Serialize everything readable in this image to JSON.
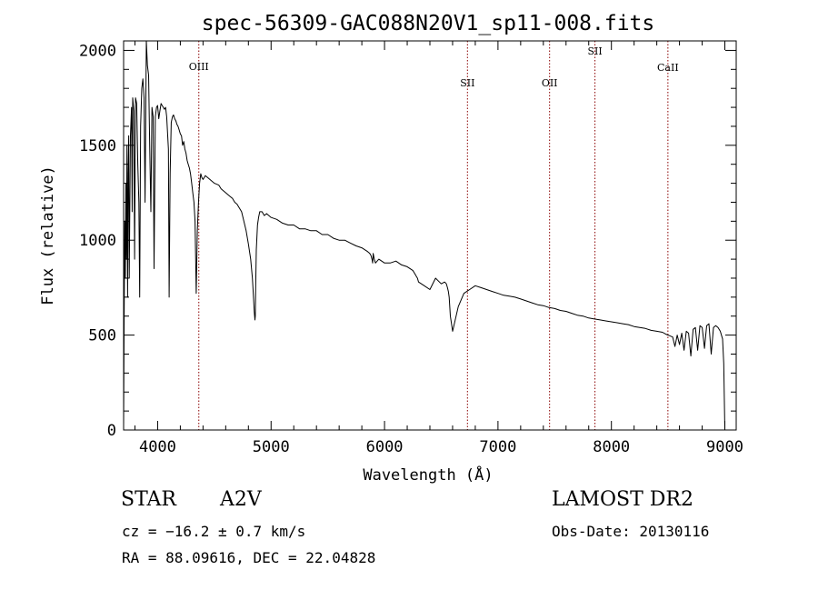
{
  "chart_data": {
    "type": "line",
    "title": "spec-56309-GAC088N20V1_sp11-008.fits",
    "xlabel": "Wavelength (Å)",
    "ylabel": "Flux (relative)",
    "xlim": [
      3700,
      9100
    ],
    "ylim": [
      0,
      2050
    ],
    "xticks": [
      4000,
      5000,
      6000,
      7000,
      8000,
      9000
    ],
    "xtick_labels": [
      "4000",
      "5000",
      "6000",
      "7000",
      "8000",
      "9000"
    ],
    "yticks": [
      0,
      500,
      1000,
      1500,
      2000
    ],
    "ytick_labels": [
      "0",
      "500",
      "1000",
      "1500",
      "2000"
    ],
    "grid": false,
    "series": [
      {
        "x": [
          3700,
          3705,
          3710,
          3715,
          3720,
          3725,
          3730,
          3735,
          3740,
          3745,
          3750,
          3760,
          3770,
          3775,
          3780,
          3790,
          3797,
          3805,
          3815,
          3825,
          3835,
          3842,
          3850,
          3860,
          3870,
          3880,
          3889,
          3900,
          3910,
          3920,
          3930,
          3940,
          3950,
          3960,
          3968,
          3980,
          3990,
          4000,
          4010,
          4020,
          4030,
          4040,
          4050,
          4060,
          4070,
          4080,
          4095,
          4101,
          4110,
          4120,
          4130,
          4140,
          4150,
          4160,
          4170,
          4180,
          4190,
          4200,
          4210,
          4220,
          4230,
          4240,
          4250,
          4260,
          4270,
          4280,
          4290,
          4300,
          4310,
          4320,
          4330,
          4340,
          4350,
          4360,
          4370,
          4380,
          4390,
          4400,
          4420,
          4440,
          4460,
          4480,
          4500,
          4520,
          4540,
          4560,
          4580,
          4600,
          4620,
          4640,
          4660,
          4680,
          4700,
          4720,
          4740,
          4760,
          4780,
          4800,
          4820,
          4835,
          4845,
          4852,
          4858,
          4861,
          4864,
          4870,
          4880,
          4890,
          4900,
          4920,
          4940,
          4960,
          4980,
          5000,
          5050,
          5100,
          5150,
          5200,
          5250,
          5300,
          5350,
          5400,
          5450,
          5500,
          5550,
          5600,
          5650,
          5700,
          5750,
          5800,
          5850,
          5870,
          5880,
          5890,
          5895,
          5900,
          5910,
          5920,
          5950,
          6000,
          6050,
          6100,
          6150,
          6200,
          6250,
          6270,
          6280,
          6290,
          6300,
          6350,
          6400,
          6450,
          6500,
          6530,
          6545,
          6555,
          6563,
          6570,
          6580,
          6600,
          6650,
          6700,
          6750,
          6800,
          6850,
          6900,
          6950,
          7000,
          7050,
          7100,
          7150,
          7200,
          7250,
          7300,
          7350,
          7400,
          7450,
          7500,
          7550,
          7600,
          7650,
          7700,
          7750,
          7800,
          7850,
          7900,
          7950,
          8000,
          8050,
          8100,
          8150,
          8200,
          8250,
          8300,
          8350,
          8400,
          8450,
          8480,
          8500,
          8520,
          8540,
          8560,
          8580,
          8600,
          8620,
          8640,
          8660,
          8680,
          8700,
          8720,
          8740,
          8760,
          8780,
          8800,
          8820,
          8840,
          8860,
          8880,
          8900,
          8920,
          8940,
          8960,
          8980,
          8990,
          9000,
          9005
        ],
        "y": [
          20,
          600,
          1100,
          800,
          1300,
          900,
          1500,
          700,
          1350,
          1550,
          800,
          1550,
          1700,
          1150,
          1750,
          1680,
          900,
          1750,
          1720,
          1400,
          1200,
          700,
          1600,
          1800,
          1850,
          1750,
          1200,
          2050,
          1920,
          1870,
          1500,
          1150,
          1700,
          1650,
          850,
          1650,
          1700,
          1710,
          1640,
          1680,
          1720,
          1710,
          1700,
          1690,
          1700,
          1650,
          1480,
          700,
          1350,
          1620,
          1650,
          1660,
          1640,
          1630,
          1610,
          1600,
          1580,
          1560,
          1550,
          1500,
          1520,
          1480,
          1460,
          1420,
          1400,
          1380,
          1350,
          1300,
          1250,
          1200,
          1100,
          720,
          1050,
          1200,
          1300,
          1350,
          1330,
          1320,
          1340,
          1330,
          1320,
          1310,
          1300,
          1295,
          1290,
          1270,
          1260,
          1250,
          1240,
          1230,
          1220,
          1200,
          1190,
          1170,
          1150,
          1100,
          1050,
          980,
          900,
          800,
          700,
          620,
          580,
          600,
          750,
          950,
          1080,
          1120,
          1150,
          1150,
          1130,
          1140,
          1130,
          1120,
          1110,
          1090,
          1080,
          1080,
          1060,
          1060,
          1050,
          1050,
          1030,
          1030,
          1010,
          1000,
          1000,
          985,
          970,
          960,
          940,
          930,
          920,
          900,
          880,
          930,
          900,
          880,
          900,
          880,
          880,
          890,
          870,
          860,
          840,
          820,
          810,
          800,
          780,
          760,
          740,
          800,
          770,
          780,
          770,
          750,
          730,
          700,
          600,
          520,
          650,
          720,
          740,
          760,
          750,
          740,
          730,
          720,
          710,
          705,
          700,
          690,
          680,
          670,
          660,
          655,
          645,
          640,
          630,
          625,
          615,
          605,
          600,
          590,
          585,
          580,
          575,
          570,
          565,
          560,
          555,
          545,
          540,
          535,
          525,
          520,
          515,
          505,
          500,
          495,
          490,
          440,
          500,
          450,
          510,
          420,
          520,
          510,
          390,
          530,
          540,
          420,
          550,
          540,
          430,
          550,
          560,
          400,
          540,
          550,
          540,
          520,
          480,
          350,
          0,
          0
        ]
      }
    ],
    "line_marks": [
      {
        "label": "OIII",
        "x": 4363
      },
      {
        "label": "SII",
        "x": 6731
      },
      {
        "label": "OII",
        "x": 7455
      },
      {
        "label": "SII",
        "x": 7855
      },
      {
        "label": "CaII",
        "x": 8498
      }
    ],
    "line_mark_color": "#8b0000"
  },
  "info": {
    "object_class": "STAR",
    "subclass": "A2V",
    "survey": "LAMOST DR2",
    "cz": "cz = −16.2 ± 0.7 km/s",
    "obs_date": "Obs-Date: 20130116",
    "ra_dec": "RA =  88.09616, DEC =  22.04828"
  }
}
